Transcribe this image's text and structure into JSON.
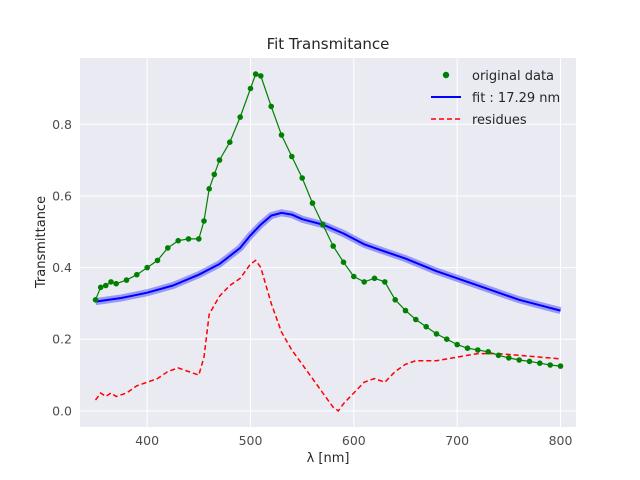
{
  "chart_data": {
    "type": "line",
    "title": "Fit Transmitance",
    "xlabel": "λ [nm]",
    "ylabel": "Transmittance",
    "xlim": [
      335,
      815
    ],
    "ylim": [
      -0.045,
      0.985
    ],
    "xticks": [
      400,
      500,
      600,
      700,
      800
    ],
    "yticks": [
      0.0,
      0.2,
      0.4,
      0.6,
      0.8
    ],
    "grid": true,
    "legend_position": "top-right",
    "series": [
      {
        "name": "original data",
        "style": "markers",
        "color": "#008000",
        "x": [
          350,
          355,
          360,
          365,
          370,
          380,
          390,
          400,
          410,
          420,
          430,
          440,
          450,
          455,
          460,
          465,
          470,
          480,
          490,
          500,
          505,
          510,
          520,
          530,
          540,
          550,
          560,
          570,
          580,
          590,
          600,
          610,
          620,
          630,
          640,
          650,
          660,
          670,
          680,
          690,
          700,
          710,
          720,
          730,
          740,
          750,
          760,
          770,
          780,
          790,
          800
        ],
        "y": [
          0.31,
          0.345,
          0.35,
          0.36,
          0.355,
          0.365,
          0.38,
          0.4,
          0.42,
          0.455,
          0.475,
          0.48,
          0.48,
          0.53,
          0.62,
          0.66,
          0.7,
          0.75,
          0.82,
          0.9,
          0.94,
          0.935,
          0.85,
          0.77,
          0.71,
          0.65,
          0.58,
          0.52,
          0.46,
          0.415,
          0.375,
          0.36,
          0.37,
          0.36,
          0.31,
          0.28,
          0.255,
          0.235,
          0.215,
          0.2,
          0.185,
          0.175,
          0.17,
          0.165,
          0.155,
          0.148,
          0.142,
          0.138,
          0.133,
          0.128,
          0.125
        ]
      },
      {
        "name": "fit : 17.29 nm",
        "style": "line",
        "color": "#0000ff",
        "x": [
          350,
          375,
          400,
          425,
          450,
          470,
          490,
          500,
          510,
          520,
          530,
          540,
          550,
          570,
          590,
          610,
          630,
          650,
          680,
          700,
          730,
          760,
          780,
          800
        ],
        "y": [
          0.305,
          0.315,
          0.33,
          0.35,
          0.38,
          0.41,
          0.455,
          0.49,
          0.52,
          0.545,
          0.553,
          0.548,
          0.535,
          0.52,
          0.495,
          0.465,
          0.445,
          0.425,
          0.39,
          0.37,
          0.34,
          0.31,
          0.295,
          0.28
        ]
      },
      {
        "name": "residues",
        "style": "dashed",
        "color": "#ff0000",
        "x": [
          350,
          355,
          360,
          365,
          370,
          380,
          390,
          400,
          410,
          420,
          430,
          440,
          450,
          455,
          460,
          470,
          480,
          490,
          500,
          505,
          510,
          520,
          530,
          540,
          550,
          560,
          570,
          580,
          585,
          590,
          600,
          610,
          620,
          630,
          640,
          650,
          660,
          680,
          700,
          720,
          740,
          760,
          780,
          800
        ],
        "y": [
          0.03,
          0.05,
          0.04,
          0.05,
          0.04,
          0.05,
          0.07,
          0.08,
          0.09,
          0.11,
          0.12,
          0.11,
          0.1,
          0.15,
          0.27,
          0.32,
          0.35,
          0.37,
          0.41,
          0.42,
          0.4,
          0.3,
          0.22,
          0.17,
          0.13,
          0.09,
          0.05,
          0.01,
          0.0,
          0.02,
          0.05,
          0.08,
          0.09,
          0.08,
          0.11,
          0.13,
          0.14,
          0.14,
          0.15,
          0.16,
          0.16,
          0.155,
          0.15,
          0.145
        ]
      }
    ]
  }
}
